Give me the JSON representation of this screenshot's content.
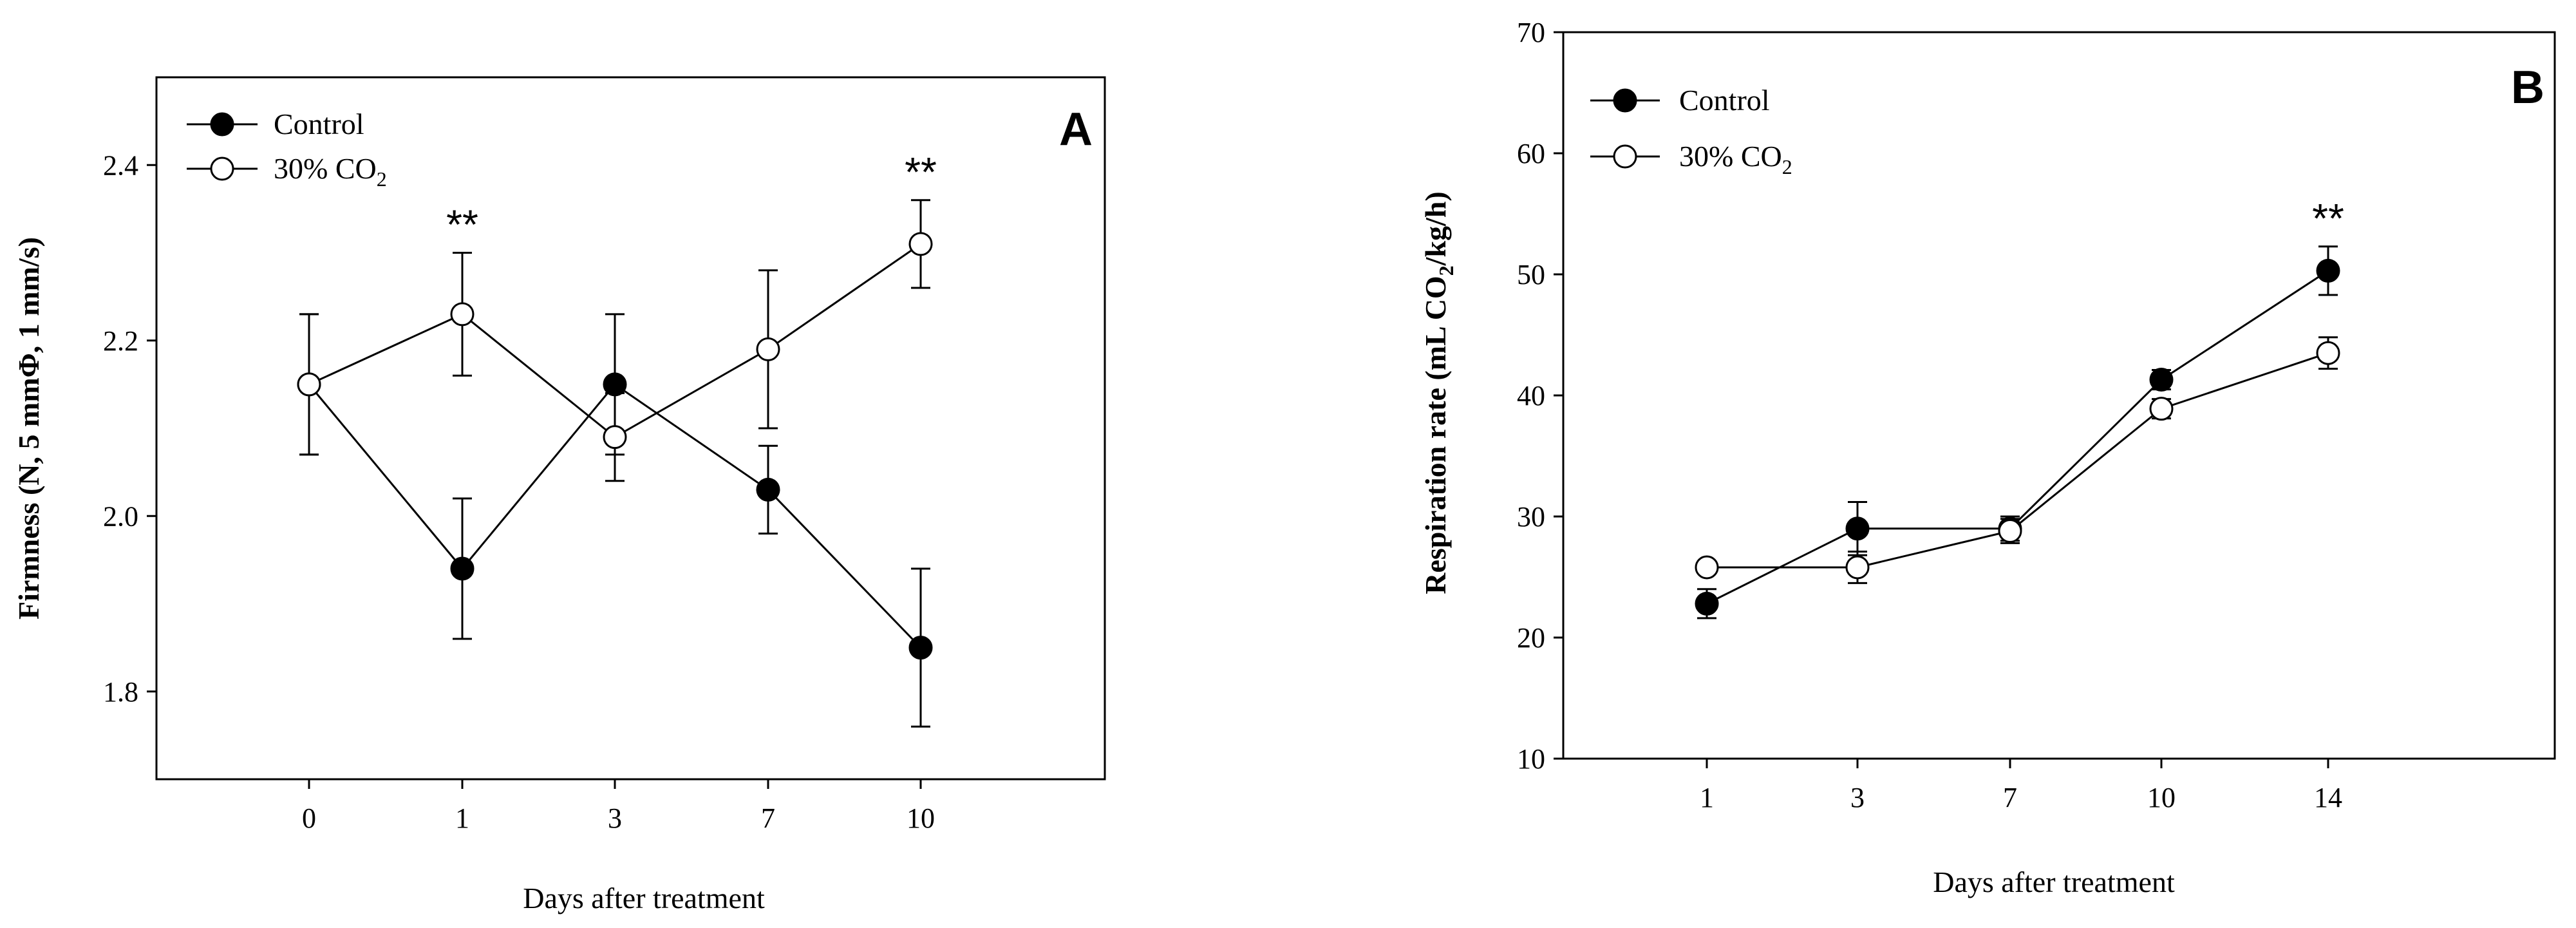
{
  "colors": {
    "axis": "#000000",
    "filled_marker": "#000000",
    "open_marker": "#ffffff"
  },
  "chart_data": [
    {
      "panel": "A",
      "type": "line",
      "title": "",
      "xlabel": "Days after treatment",
      "ylabel": "Firmness (N, 5 mmΦ, 1 mm/s)",
      "categories": [
        "0",
        "1",
        "3",
        "7",
        "10"
      ],
      "ylim": [
        1.7,
        2.5
      ],
      "yticks": [
        "1.8",
        "2.0",
        "2.2",
        "2.4"
      ],
      "grid": false,
      "legend_position": "top-left",
      "series": [
        {
          "name": "Control",
          "marker": "filled",
          "values": [
            2.15,
            1.94,
            2.15,
            2.03,
            1.85
          ],
          "errors": [
            0.08,
            0.08,
            0.08,
            0.05,
            0.09
          ]
        },
        {
          "name": "30% CO2",
          "marker": "open",
          "values": [
            2.15,
            2.23,
            2.09,
            2.19,
            2.31
          ],
          "errors": [
            0.08,
            0.07,
            0.05,
            0.09,
            0.05
          ]
        }
      ],
      "annotations": [
        {
          "category_index": 1,
          "text": "**"
        },
        {
          "category_index": 4,
          "text": "**"
        }
      ]
    },
    {
      "panel": "B",
      "type": "line",
      "title": "",
      "xlabel": "Days after treatment",
      "ylabel": "Respiration rate (mL CO2/kg/h)",
      "categories": [
        "1",
        "3",
        "7",
        "10",
        "14"
      ],
      "ylim": [
        10,
        70
      ],
      "yticks": [
        "10",
        "20",
        "30",
        "40",
        "50",
        "60",
        "70"
      ],
      "grid": false,
      "legend_position": "top-left",
      "series": [
        {
          "name": "Control",
          "marker": "filled",
          "values": [
            22.8,
            29.0,
            29.0,
            41.3,
            50.3
          ],
          "errors": [
            1.2,
            2.2,
            1.0,
            0.8,
            2.0
          ]
        },
        {
          "name": "30% CO2",
          "marker": "open",
          "values": [
            25.8,
            25.8,
            28.8,
            38.9,
            43.5
          ],
          "errors": [
            0.5,
            1.3,
            1.0,
            0.8,
            1.3
          ]
        }
      ],
      "annotations": [
        {
          "category_index": 4,
          "text": "**"
        }
      ]
    }
  ]
}
